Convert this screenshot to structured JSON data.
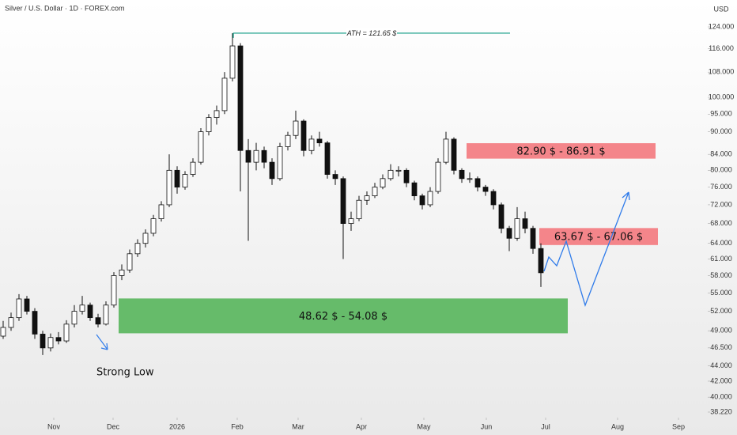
{
  "chart_data": {
    "type": "candlestick",
    "title": "Silver / U.S. Dollar · 1D · FOREX.com",
    "currency_label": "USD",
    "log_scale": true,
    "ylim": [
      38.22,
      124
    ],
    "yticks": [
      {
        "value": 124,
        "label": "124.000"
      },
      {
        "value": 116,
        "label": "116.000"
      },
      {
        "value": 108,
        "label": "108.000"
      },
      {
        "value": 100,
        "label": "100.000"
      },
      {
        "value": 95,
        "label": "95.000"
      },
      {
        "value": 90,
        "label": "90.000"
      },
      {
        "value": 84,
        "label": "84.000"
      },
      {
        "value": 80,
        "label": "80.000"
      },
      {
        "value": 76,
        "label": "76.000"
      },
      {
        "value": 72,
        "label": "72.000"
      },
      {
        "value": 68,
        "label": "68.000"
      },
      {
        "value": 64,
        "label": "64.000"
      },
      {
        "value": 61,
        "label": "61.000"
      },
      {
        "value": 58,
        "label": "58.000"
      },
      {
        "value": 55,
        "label": "55.000"
      },
      {
        "value": 52,
        "label": "52.000"
      },
      {
        "value": 49,
        "label": "49.000"
      },
      {
        "value": 46.5,
        "label": "46.500"
      },
      {
        "value": 44,
        "label": "44.000"
      },
      {
        "value": 42,
        "label": "42.000"
      },
      {
        "value": 40,
        "label": "40.000"
      },
      {
        "value": 38.22,
        "label": "38.220"
      }
    ],
    "xlim": [
      -0.4,
      89.1
    ],
    "xticks": [
      {
        "value": 6.4,
        "label": "Nov"
      },
      {
        "value": 13.9,
        "label": "Dec"
      },
      {
        "value": 22,
        "label": "2026"
      },
      {
        "value": 29.6,
        "label": "Feb"
      },
      {
        "value": 37.3,
        "label": "Mar"
      },
      {
        "value": 45.3,
        "label": "Apr"
      },
      {
        "value": 53.2,
        "label": "May"
      },
      {
        "value": 61.1,
        "label": "Jun"
      },
      {
        "value": 68.6,
        "label": "Jul"
      },
      {
        "value": 77.7,
        "label": "Aug"
      },
      {
        "value": 85.4,
        "label": "Sep"
      }
    ],
    "up_color": "#ffffff",
    "down_color": "#111111",
    "candles": {
      "open": [
        48.2,
        49.5,
        51,
        54,
        52,
        48.5,
        46.5,
        48,
        47.5,
        50,
        52,
        53,
        51,
        50,
        53,
        58,
        59,
        62,
        64,
        66,
        69,
        72,
        80,
        76,
        79,
        82,
        90,
        94,
        96,
        106,
        117,
        85,
        82,
        85,
        82,
        78,
        86,
        89,
        93,
        85,
        88,
        87,
        79,
        78,
        68,
        69,
        73,
        74,
        76,
        78,
        80,
        80,
        77,
        74,
        72,
        75,
        82,
        88,
        80,
        78,
        78,
        76,
        75,
        72,
        67,
        65,
        69,
        67,
        63
      ],
      "high": [
        50.5,
        51.8,
        54.8,
        54.5,
        52.5,
        49,
        48.6,
        48.8,
        50.6,
        53,
        54.5,
        53.4,
        51.6,
        53.6,
        58.6,
        60,
        62.8,
        64.8,
        66.8,
        69.8,
        72.8,
        84,
        81,
        79.8,
        83,
        91,
        95,
        97.5,
        108,
        121.65,
        118,
        88,
        87,
        86,
        83,
        87,
        90,
        96,
        93.5,
        89,
        90,
        87.5,
        80,
        78.5,
        70.5,
        74,
        75,
        77,
        79,
        81.5,
        81,
        80.5,
        77.5,
        74.5,
        76,
        83,
        90,
        88.5,
        80.5,
        79.5,
        78.5,
        76.5,
        75.5,
        72.5,
        67.5,
        71.5,
        70.5,
        67.5,
        64
      ],
      "low": [
        47.8,
        49,
        50.5,
        51.5,
        47.8,
        45.5,
        46,
        47,
        47.2,
        49.5,
        51.5,
        50.5,
        49.5,
        49.8,
        52.6,
        57.2,
        58.5,
        61.4,
        63.2,
        65.4,
        68.4,
        71.5,
        74.5,
        75.4,
        78.4,
        81.4,
        89,
        92,
        95,
        105,
        75,
        64.5,
        80,
        80.5,
        76.5,
        77.5,
        85,
        88,
        83.5,
        84,
        86,
        78,
        76.5,
        61,
        66.5,
        68.5,
        72,
        73.5,
        75.5,
        77.5,
        78.5,
        76,
        73,
        71,
        71.5,
        74.5,
        81.5,
        79,
        77,
        77,
        75,
        74,
        71,
        66,
        62.5,
        64.5,
        66,
        62,
        56
      ],
      "close": [
        49.5,
        51,
        54,
        52,
        48.5,
        46.5,
        48,
        47.5,
        50,
        52,
        53,
        51,
        50,
        53,
        58,
        59,
        62,
        64,
        66,
        69,
        72,
        80,
        76,
        79,
        82,
        90,
        94,
        96,
        106,
        117,
        85,
        82,
        85,
        82,
        78,
        86,
        89,
        93,
        85,
        88,
        87,
        79,
        78,
        68,
        69,
        73,
        74,
        76,
        78,
        80,
        80,
        77,
        74,
        72,
        75,
        82,
        88,
        80,
        78,
        78,
        76,
        75,
        72,
        67,
        65,
        69,
        67,
        63,
        58.5
      ]
    },
    "zones": [
      {
        "label": "82.90 $ - 86.91 $",
        "low": 82.9,
        "high": 86.91,
        "color": "#f4858a"
      },
      {
        "label": "63.67 $ - 67.06 $",
        "low": 63.67,
        "high": 67.06,
        "color": "#f4858a"
      },
      {
        "label": "48.62 $ - 54.08 $",
        "low": 48.62,
        "high": 54.08,
        "color": "#66bb6a"
      }
    ],
    "ath": {
      "text": "ATH = 121.65 $",
      "value": 121.65,
      "color": "#089981"
    },
    "strong_low_label": "Strong Low",
    "projection_color": "#2f7bea"
  }
}
